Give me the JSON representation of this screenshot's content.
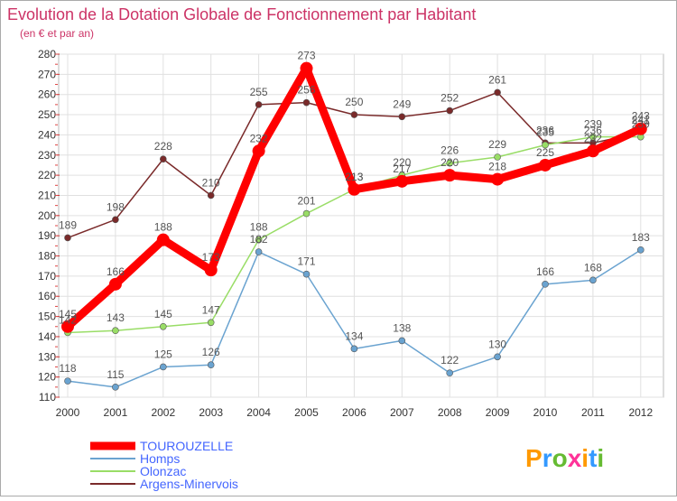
{
  "chart_data": {
    "type": "line",
    "title": "Evolution de la Dotation Globale de Fonctionnement par Habitant",
    "subtitle": "(en € et par an)",
    "x": [
      "2000",
      "2001",
      "2002",
      "2003",
      "2004",
      "2005",
      "2006",
      "2007",
      "2008",
      "2009",
      "2010",
      "2011",
      "2012"
    ],
    "ylim": [
      110,
      280
    ],
    "yticks": [
      110,
      120,
      130,
      140,
      150,
      160,
      170,
      180,
      190,
      200,
      210,
      220,
      230,
      240,
      250,
      260,
      270,
      280
    ],
    "grid": true,
    "legend_position": "bottom-left",
    "series": [
      {
        "name": "TOUROUZELLE",
        "color": "#ff0000",
        "values": [
          145,
          166,
          188,
          173,
          232,
          273,
          213,
          217,
          220,
          218,
          225,
          232,
          243
        ]
      },
      {
        "name": "Homps",
        "color": "#6aa3d0",
        "values": [
          118,
          115,
          125,
          126,
          182,
          171,
          134,
          138,
          122,
          130,
          166,
          168,
          183
        ]
      },
      {
        "name": "Olonzac",
        "color": "#99dd66",
        "values": [
          142,
          143,
          145,
          147,
          188,
          201,
          213,
          220,
          226,
          229,
          235,
          239,
          239
        ]
      },
      {
        "name": "Argens-Minervois",
        "color": "#7a2a2a",
        "values": [
          189,
          198,
          228,
          210,
          255,
          256,
          250,
          249,
          252,
          261,
          236,
          236,
          241
        ]
      }
    ]
  },
  "legend": {
    "items": [
      "TOUROUZELLE",
      "Homps",
      "Olonzac",
      "Argens-Minervois"
    ]
  },
  "brand": {
    "name": "Proxiti"
  }
}
